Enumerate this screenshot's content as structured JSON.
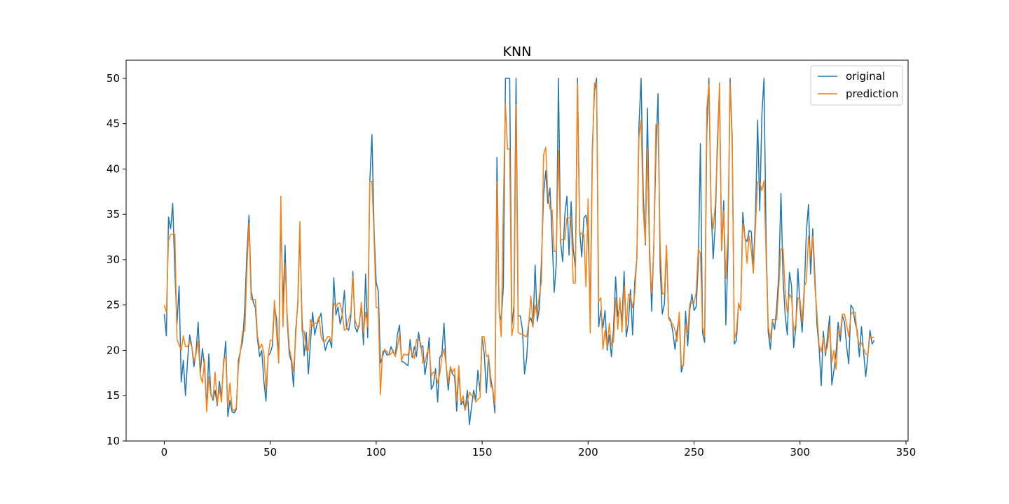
{
  "chart_data": {
    "type": "line",
    "title": "KNN",
    "xlabel": "",
    "ylabel": "",
    "xlim": [
      -18,
      351
    ],
    "ylim": [
      10,
      52
    ],
    "xticks": [
      0,
      50,
      100,
      150,
      200,
      250,
      300,
      350
    ],
    "yticks": [
      10,
      15,
      20,
      25,
      30,
      35,
      40,
      45,
      50
    ],
    "grid": false,
    "legend": "top-right",
    "series": [
      {
        "name": "original",
        "color": "#1f77b4",
        "values": [
          24.0,
          21.6,
          34.7,
          33.4,
          36.2,
          28.7,
          22.9,
          27.1,
          16.5,
          18.9,
          15.0,
          18.9,
          21.7,
          20.4,
          18.2,
          19.9,
          23.1,
          17.5,
          20.2,
          18.2,
          13.6,
          19.6,
          15.2,
          14.5,
          15.6,
          13.9,
          16.6,
          14.8,
          18.4,
          21.0,
          12.7,
          14.5,
          13.2,
          13.1,
          13.5,
          18.9,
          20.0,
          21.0,
          24.7,
          30.8,
          34.9,
          26.6,
          25.3,
          24.7,
          21.2,
          19.3,
          20.0,
          16.6,
          14.4,
          19.4,
          19.7,
          20.5,
          25.0,
          23.4,
          18.9,
          35.4,
          24.7,
          31.6,
          23.3,
          19.6,
          18.7,
          16.0,
          22.2,
          25.0,
          33.0,
          23.5,
          19.4,
          22.0,
          17.4,
          20.9,
          24.2,
          21.7,
          22.8,
          23.4,
          24.1,
          21.4,
          20.0,
          20.8,
          21.2,
          20.3,
          28.0,
          23.9,
          24.8,
          22.9,
          23.9,
          26.6,
          22.5,
          22.2,
          23.6,
          28.7,
          22.6,
          22.0,
          22.9,
          25.0,
          20.6,
          28.4,
          21.4,
          38.7,
          43.8,
          33.2,
          27.5,
          26.5,
          18.6,
          19.3,
          20.1,
          19.5,
          19.5,
          20.4,
          19.8,
          19.4,
          21.7,
          22.8,
          18.8,
          18.7,
          18.5,
          18.3,
          21.2,
          19.2,
          20.4,
          19.3,
          22.0,
          20.3,
          20.5,
          17.3,
          18.8,
          21.4,
          15.7,
          16.2,
          18.0,
          14.3,
          19.2,
          19.6,
          23.0,
          18.4,
          15.6,
          18.1,
          17.4,
          17.1,
          13.3,
          17.8,
          14.0,
          14.4,
          13.4,
          15.6,
          11.8,
          13.8,
          15.6,
          14.6,
          17.8,
          15.4,
          21.5,
          19.6,
          15.3,
          19.4,
          17.0,
          15.6,
          13.1,
          41.3,
          24.3,
          23.3,
          27.0,
          50.0,
          50.0,
          50.0,
          22.7,
          25.0,
          50.0,
          23.8,
          23.8,
          22.3,
          17.4,
          19.1,
          23.1,
          23.6,
          22.6,
          29.4,
          23.2,
          24.6,
          29.9,
          37.2,
          39.8,
          36.2,
          37.9,
          32.5,
          26.4,
          29.6,
          50.0,
          32.0,
          29.8,
          34.9,
          37.0,
          30.5,
          36.4,
          31.1,
          29.1,
          50.0,
          33.3,
          30.3,
          34.6,
          34.9,
          32.9,
          24.1,
          42.3,
          48.5,
          50.0,
          22.6,
          24.4,
          22.5,
          24.4,
          20.0,
          21.7,
          19.3,
          22.4,
          28.1,
          23.7,
          25.0,
          23.3,
          28.7,
          21.5,
          23.0,
          26.7,
          21.7,
          27.5,
          30.1,
          44.8,
          50.0,
          37.6,
          31.6,
          46.7,
          31.5,
          24.3,
          31.7,
          41.7,
          48.3,
          29.0,
          24.0,
          25.1,
          31.5,
          23.7,
          23.3,
          22.0,
          20.1,
          22.2,
          23.7,
          17.6,
          18.5,
          24.3,
          20.5,
          24.5,
          26.2,
          24.4,
          24.8,
          29.6,
          42.8,
          21.9,
          20.9,
          44.0,
          50.0,
          36.0,
          30.1,
          33.8,
          43.1,
          48.8,
          31.0,
          36.5,
          22.8,
          30.7,
          50.0,
          43.5,
          20.7,
          21.1,
          25.2,
          24.4,
          35.2,
          32.4,
          32.0,
          33.2,
          33.1,
          29.1,
          35.1,
          45.4,
          35.4,
          46.0,
          50.0,
          32.2,
          22.0,
          20.1,
          23.2,
          22.3,
          24.8,
          28.5,
          37.3,
          27.9,
          23.9,
          21.7,
          28.6,
          27.1,
          20.3,
          22.5,
          29.0,
          24.8,
          22.0,
          26.4,
          33.1,
          36.1,
          28.4,
          33.4,
          28.2,
          22.8,
          20.3,
          16.1,
          22.1,
          19.4,
          21.6,
          23.8,
          16.2,
          17.8,
          19.8,
          23.1,
          21.0,
          23.8,
          23.1,
          20.4,
          18.5,
          25.0,
          24.6,
          23.0,
          22.2,
          19.3,
          22.6,
          19.8,
          17.1,
          19.4,
          22.2,
          20.7,
          21.1
        ]
      },
      {
        "name": "prediction",
        "color": "#ff7f0e",
        "values": [
          25.0,
          24.2,
          32.1,
          32.8,
          32.8,
          32.8,
          21.2,
          20.6,
          20.0,
          21.6,
          20.4,
          20.4,
          21.0,
          20.4,
          18.8,
          19.6,
          21.0,
          17.3,
          16.4,
          19.0,
          13.2,
          17.1,
          15.0,
          14.7,
          17.6,
          14.1,
          15.8,
          14.3,
          19.0,
          19.3,
          13.8,
          16.4,
          13.6,
          13.3,
          13.7,
          18.2,
          20.0,
          22.1,
          22.1,
          29.0,
          34.0,
          25.6,
          25.6,
          25.6,
          21.6,
          20.2,
          20.7,
          19.7,
          15.7,
          19.3,
          21.1,
          21.1,
          25.5,
          21.9,
          18.6,
          37.0,
          22.6,
          29.6,
          24.0,
          20.3,
          19.1,
          17.6,
          21.4,
          25.5,
          34.2,
          22.1,
          22.1,
          20.0,
          20.0,
          23.4,
          22.7,
          23.0,
          23.0,
          23.7,
          21.5,
          21.0,
          21.0,
          21.5,
          21.5,
          21.0,
          25.2,
          24.8,
          25.2,
          25.2,
          24.0,
          22.2,
          22.4,
          23.4,
          24.1,
          28.2,
          23.4,
          22.6,
          22.6,
          25.3,
          21.9,
          24.2,
          22.6,
          38.6,
          38.6,
          32.5,
          24.7,
          24.7,
          15.1,
          19.9,
          20.0,
          19.9,
          19.5,
          19.6,
          20.0,
          19.3,
          20.3,
          21.8,
          18.9,
          19.6,
          19.5,
          19.5,
          20.3,
          19.6,
          19.1,
          21.2,
          21.2,
          20.8,
          18.6,
          18.6,
          19.7,
          20.3,
          17.2,
          17.6,
          17.4,
          16.4,
          17.4,
          19.2,
          20.2,
          18.4,
          16.4,
          18.2,
          17.6,
          18.0,
          14.4,
          18.3,
          14.2,
          15.0,
          13.5,
          14.3,
          15.4,
          15.0,
          15.0,
          14.3,
          14.6,
          14.8,
          21.5,
          21.5,
          19.3,
          19.5,
          16.0,
          15.8,
          14.0,
          38.6,
          24.5,
          21.5,
          36.0,
          47.1,
          42.2,
          42.2,
          21.6,
          23.0,
          47.1,
          22.0,
          21.8,
          21.8,
          21.6,
          21.5,
          23.0,
          26.0,
          22.7,
          25.0,
          23.8,
          26.1,
          27.6,
          41.6,
          42.4,
          37.3,
          35.6,
          35.5,
          30.9,
          30.9,
          42.0,
          32.2,
          32.2,
          32.2,
          34.6,
          34.6,
          34.6,
          27.4,
          27.4,
          49.4,
          33.1,
          32.8,
          32.8,
          27.0,
          36.7,
          21.9,
          41.2,
          49.5,
          49.5,
          25.4,
          25.8,
          20.1,
          22.2,
          20.3,
          23.0,
          20.5,
          21.0,
          25.8,
          22.3,
          25.8,
          22.0,
          27.1,
          22.4,
          26.2,
          26.0,
          24.7,
          26.2,
          30.2,
          43.5,
          45.4,
          35.4,
          31.9,
          42.3,
          30.0,
          26.3,
          31.2,
          44.9,
          44.9,
          31.6,
          26.2,
          26.3,
          31.6,
          23.5,
          23.1,
          22.9,
          22.2,
          21.0,
          24.2,
          18.3,
          18.3,
          22.8,
          22.0,
          25.2,
          25.2,
          25.2,
          26.4,
          31.2,
          30.7,
          22.6,
          21.5,
          46.6,
          49.4,
          35.6,
          33.4,
          36.0,
          41.5,
          49.5,
          31.0,
          35.4,
          27.9,
          32.8,
          49.5,
          42.5,
          21.2,
          22.1,
          25.2,
          24.4,
          34.0,
          32.6,
          29.6,
          32.6,
          31.0,
          28.5,
          33.8,
          38.6,
          38.6,
          37.6,
          38.7,
          30.4,
          22.7,
          21.2,
          23.4,
          23.4,
          23.4,
          27.1,
          31.2,
          31.2,
          26.5,
          24.2,
          26.2,
          25.8,
          22.1,
          22.9,
          25.8,
          25.6,
          23.1,
          27.0,
          27.6,
          32.6,
          30.3,
          32.6,
          27.1,
          24.1,
          20.6,
          19.8,
          21.4,
          19.8,
          20.4,
          22.8,
          18.7,
          20.0,
          17.9,
          22.1,
          21.8,
          24.0,
          24.0,
          22.8,
          21.5,
          24.0,
          24.2,
          24.2,
          21.6,
          20.6,
          20.8,
          20.2,
          19.6,
          19.5,
          21.6,
          21.4,
          21.4
        ]
      }
    ]
  }
}
